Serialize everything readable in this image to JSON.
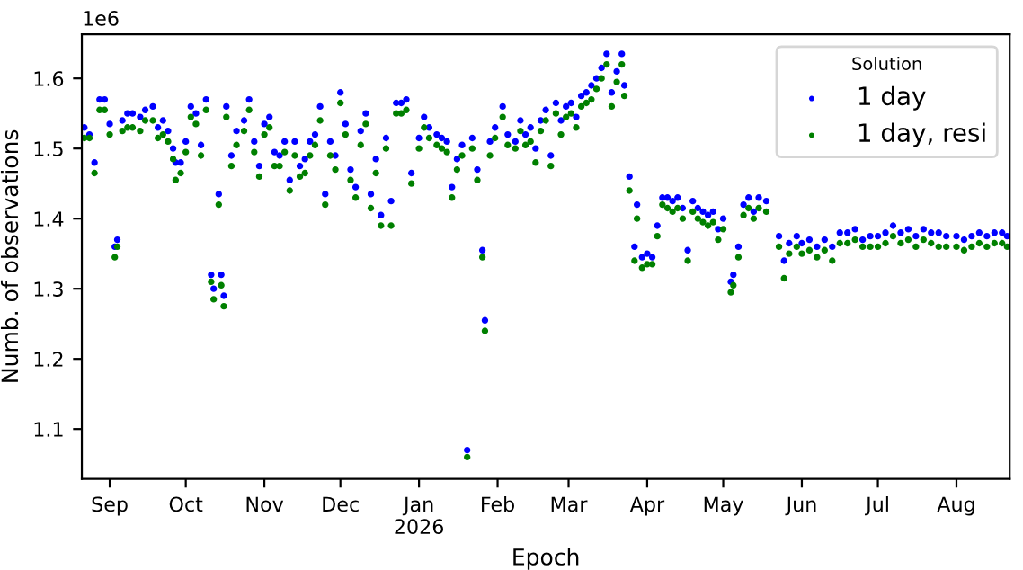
{
  "chart_data": {
    "type": "scatter",
    "xlabel": "Epoch",
    "ylabel": "Numb. of observations",
    "legend_title": "Solution",
    "legend": "top right",
    "marker": "circle",
    "grid": false,
    "annotations": [
      "1e6"
    ],
    "xlim": [
      "2025-08-21",
      "2026-08-22"
    ],
    "xticks": [
      {
        "value": "2025-09-01",
        "label": "Sep"
      },
      {
        "value": "2025-10-01",
        "label": "Oct"
      },
      {
        "value": "2025-11-01",
        "label": "Nov"
      },
      {
        "value": "2025-12-01",
        "label": "Dec"
      },
      {
        "value": "2026-01-01",
        "label": "Jan\n2026"
      },
      {
        "value": "2026-02-01",
        "label": "Feb"
      },
      {
        "value": "2026-03-01",
        "label": "Mar"
      },
      {
        "value": "2026-04-01",
        "label": "Apr"
      },
      {
        "value": "2026-05-01",
        "label": "May"
      },
      {
        "value": "2026-06-01",
        "label": "Jun"
      },
      {
        "value": "2026-07-01",
        "label": "Jul"
      },
      {
        "value": "2026-08-01",
        "label": "Aug"
      }
    ],
    "ylim": [
      1.029,
      1.663
    ],
    "yticks": [
      1.1,
      1.2,
      1.3,
      1.4,
      1.5,
      1.6
    ],
    "x": [
      "2025-08-22",
      "2025-08-24",
      "2025-08-26",
      "2025-08-28",
      "2025-08-30",
      "2025-09-01",
      "2025-09-03",
      "2025-09-04",
      "2025-09-06",
      "2025-09-08",
      "2025-09-10",
      "2025-09-13",
      "2025-09-15",
      "2025-09-18",
      "2025-09-20",
      "2025-09-22",
      "2025-09-24",
      "2025-09-26",
      "2025-09-27",
      "2025-09-29",
      "2025-10-01",
      "2025-10-03",
      "2025-10-05",
      "2025-10-07",
      "2025-10-09",
      "2025-10-11",
      "2025-10-12",
      "2025-10-14",
      "2025-10-15",
      "2025-10-16",
      "2025-10-17",
      "2025-10-19",
      "2025-10-21",
      "2025-10-24",
      "2025-10-26",
      "2025-10-28",
      "2025-10-30",
      "2025-11-01",
      "2025-11-03",
      "2025-11-05",
      "2025-11-07",
      "2025-11-09",
      "2025-11-11",
      "2025-11-13",
      "2025-11-15",
      "2025-11-17",
      "2025-11-19",
      "2025-11-21",
      "2025-11-23",
      "2025-11-25",
      "2025-11-27",
      "2025-11-29",
      "2025-12-01",
      "2025-12-03",
      "2025-12-05",
      "2025-12-07",
      "2025-12-09",
      "2025-12-11",
      "2025-12-13",
      "2025-12-15",
      "2025-12-17",
      "2025-12-19",
      "2025-12-21",
      "2025-12-23",
      "2025-12-25",
      "2025-12-27",
      "2025-12-29",
      "2026-01-01",
      "2026-01-03",
      "2026-01-05",
      "2026-01-08",
      "2026-01-10",
      "2026-01-12",
      "2026-01-14",
      "2026-01-16",
      "2026-01-18",
      "2026-01-20",
      "2026-01-22",
      "2026-01-24",
      "2026-01-26",
      "2026-01-27",
      "2026-01-29",
      "2026-01-31",
      "2026-02-03",
      "2026-02-05",
      "2026-02-08",
      "2026-02-10",
      "2026-02-12",
      "2026-02-14",
      "2026-02-16",
      "2026-02-18",
      "2026-02-20",
      "2026-02-22",
      "2026-02-24",
      "2026-02-26",
      "2026-02-28",
      "2026-03-02",
      "2026-03-04",
      "2026-03-06",
      "2026-03-08",
      "2026-03-10",
      "2026-03-12",
      "2026-03-14",
      "2026-03-16",
      "2026-03-18",
      "2026-03-20",
      "2026-03-22",
      "2026-03-23",
      "2026-03-25",
      "2026-03-27",
      "2026-03-28",
      "2026-03-30",
      "2026-04-01",
      "2026-04-03",
      "2026-04-05",
      "2026-04-07",
      "2026-04-09",
      "2026-04-11",
      "2026-04-13",
      "2026-04-15",
      "2026-04-17",
      "2026-04-19",
      "2026-04-21",
      "2026-04-23",
      "2026-04-25",
      "2026-04-27",
      "2026-04-29",
      "2026-05-01",
      "2026-05-04",
      "2026-05-05",
      "2026-05-07",
      "2026-05-09",
      "2026-05-11",
      "2026-05-13",
      "2026-05-15",
      "2026-05-18",
      "2026-05-23",
      "2026-05-25",
      "2026-05-27",
      "2026-05-30",
      "2026-06-01",
      "2026-06-04",
      "2026-06-07",
      "2026-06-10",
      "2026-06-13",
      "2026-06-16",
      "2026-06-19",
      "2026-06-22",
      "2026-06-25",
      "2026-06-28",
      "2026-07-01",
      "2026-07-04",
      "2026-07-07",
      "2026-07-10",
      "2026-07-13",
      "2026-07-16",
      "2026-07-19",
      "2026-07-22",
      "2026-07-25",
      "2026-07-28",
      "2026-08-01",
      "2026-08-04",
      "2026-08-07",
      "2026-08-10",
      "2026-08-13",
      "2026-08-16",
      "2026-08-19",
      "2026-08-21"
    ],
    "series": [
      {
        "name": "1 day",
        "color": "#0000ff",
        "values": [
          1.53,
          1.52,
          1.48,
          1.57,
          1.57,
          1.535,
          1.36,
          1.37,
          1.54,
          1.55,
          1.55,
          1.545,
          1.555,
          1.56,
          1.53,
          1.54,
          1.525,
          1.5,
          1.48,
          1.48,
          1.51,
          1.56,
          1.55,
          1.505,
          1.57,
          1.32,
          1.3,
          1.435,
          1.32,
          1.29,
          1.56,
          1.49,
          1.525,
          1.54,
          1.57,
          1.51,
          1.475,
          1.535,
          1.545,
          1.495,
          1.49,
          1.51,
          1.455,
          1.51,
          1.475,
          1.485,
          1.51,
          1.52,
          1.56,
          1.435,
          1.51,
          1.49,
          1.58,
          1.535,
          1.47,
          1.445,
          1.525,
          1.55,
          1.435,
          1.485,
          1.405,
          1.515,
          1.425,
          1.565,
          1.565,
          1.57,
          1.465,
          1.515,
          1.545,
          1.53,
          1.52,
          1.515,
          1.51,
          1.445,
          1.485,
          1.505,
          1.07,
          1.515,
          1.47,
          1.355,
          1.255,
          1.51,
          1.53,
          1.56,
          1.52,
          1.51,
          1.54,
          1.52,
          1.53,
          1.5,
          1.54,
          1.555,
          1.49,
          1.565,
          1.54,
          1.56,
          1.565,
          1.545,
          1.575,
          1.58,
          1.59,
          1.6,
          1.615,
          1.635,
          1.58,
          1.61,
          1.635,
          1.59,
          1.46,
          1.36,
          1.42,
          1.345,
          1.35,
          1.345,
          1.39,
          1.43,
          1.43,
          1.425,
          1.43,
          1.415,
          1.355,
          1.425,
          1.415,
          1.41,
          1.405,
          1.41,
          1.385,
          1.4,
          1.31,
          1.32,
          1.36,
          1.42,
          1.43,
          1.41,
          1.43,
          1.425,
          1.375,
          1.34,
          1.365,
          1.375,
          1.365,
          1.37,
          1.36,
          1.37,
          1.36,
          1.38,
          1.38,
          1.385,
          1.37,
          1.375,
          1.375,
          1.38,
          1.39,
          1.38,
          1.385,
          1.375,
          1.385,
          1.38,
          1.38,
          1.375,
          1.375,
          1.37,
          1.375,
          1.38,
          1.375,
          1.38,
          1.38,
          1.375
        ]
      },
      {
        "name": "1 day, resi",
        "color": "#008000",
        "values": [
          1.515,
          1.515,
          1.465,
          1.555,
          1.555,
          1.52,
          1.345,
          1.36,
          1.525,
          1.53,
          1.53,
          1.525,
          1.54,
          1.54,
          1.515,
          1.52,
          1.51,
          1.485,
          1.455,
          1.465,
          1.495,
          1.545,
          1.535,
          1.49,
          1.555,
          1.31,
          1.285,
          1.42,
          1.305,
          1.275,
          1.545,
          1.475,
          1.505,
          1.525,
          1.555,
          1.495,
          1.46,
          1.52,
          1.53,
          1.475,
          1.475,
          1.495,
          1.44,
          1.49,
          1.46,
          1.465,
          1.49,
          1.505,
          1.54,
          1.42,
          1.49,
          1.47,
          1.565,
          1.52,
          1.455,
          1.43,
          1.505,
          1.535,
          1.415,
          1.465,
          1.39,
          1.5,
          1.39,
          1.55,
          1.55,
          1.555,
          1.45,
          1.5,
          1.53,
          1.515,
          1.505,
          1.5,
          1.495,
          1.43,
          1.47,
          1.49,
          1.06,
          1.5,
          1.455,
          1.345,
          1.24,
          1.49,
          1.515,
          1.545,
          1.505,
          1.5,
          1.525,
          1.505,
          1.51,
          1.48,
          1.525,
          1.54,
          1.475,
          1.55,
          1.52,
          1.545,
          1.55,
          1.53,
          1.56,
          1.565,
          1.57,
          1.585,
          1.6,
          1.62,
          1.56,
          1.595,
          1.62,
          1.575,
          1.44,
          1.34,
          1.4,
          1.33,
          1.335,
          1.335,
          1.375,
          1.42,
          1.415,
          1.41,
          1.415,
          1.4,
          1.34,
          1.41,
          1.4,
          1.395,
          1.39,
          1.395,
          1.37,
          1.385,
          1.295,
          1.305,
          1.345,
          1.405,
          1.415,
          1.4,
          1.415,
          1.41,
          1.36,
          1.315,
          1.35,
          1.36,
          1.35,
          1.355,
          1.345,
          1.355,
          1.34,
          1.365,
          1.365,
          1.37,
          1.36,
          1.36,
          1.36,
          1.365,
          1.375,
          1.365,
          1.37,
          1.36,
          1.37,
          1.365,
          1.36,
          1.36,
          1.36,
          1.355,
          1.36,
          1.365,
          1.36,
          1.365,
          1.365,
          1.36
        ]
      }
    ]
  }
}
